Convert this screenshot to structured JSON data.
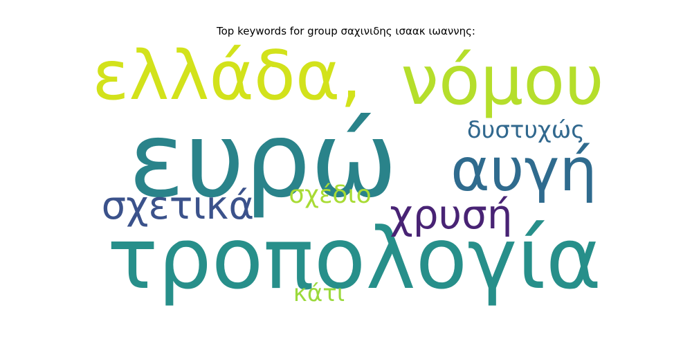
{
  "title": "Top keywords for group σαχινιδης ισαακ ιωαννης:",
  "words": [
    {
      "text": "ευρώ",
      "color": "#2a838a"
    },
    {
      "text": "τροπολογία",
      "color": "#278f8a"
    },
    {
      "text": "ελλάδα,",
      "color": "#d2e21b"
    },
    {
      "text": "νόμου",
      "color": "#b5de2b"
    },
    {
      "text": "αυγή",
      "color": "#2f6b8e"
    },
    {
      "text": "χρυσή",
      "color": "#482374"
    },
    {
      "text": "σχετικά",
      "color": "#3b528b"
    },
    {
      "text": "δυστυχώς",
      "color": "#31688e"
    },
    {
      "text": "σχέδιο",
      "color": "#a8db34"
    },
    {
      "text": "κάτι",
      "color": "#9bd93c"
    }
  ]
}
